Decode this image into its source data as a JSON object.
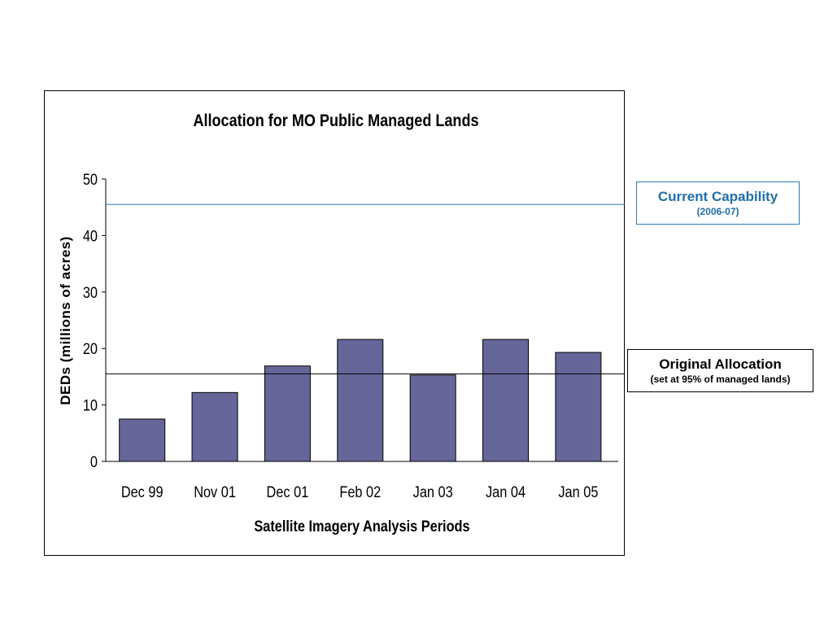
{
  "chart_data": {
    "type": "bar",
    "title": "Allocation for MO Public Managed Lands",
    "xlabel": "Satellite Imagery Analysis Periods",
    "ylabel": "DEDs (millions of acres)",
    "categories": [
      "Dec 99",
      "Nov 01",
      "Dec 01",
      "Feb 02",
      "Jan 03",
      "Jan 04",
      "Jan 05"
    ],
    "values": [
      7.5,
      12.2,
      16.9,
      21.6,
      15.3,
      21.6,
      19.3
    ],
    "ylim": [
      0,
      50
    ],
    "yticks": [
      "0",
      "10",
      "20",
      "30",
      "40",
      "50"
    ],
    "ytick_values": [
      0,
      10,
      20,
      30,
      40,
      50
    ],
    "grid": false,
    "legend": "none",
    "reference_lines": [
      {
        "id": "current",
        "value": 45.5,
        "color": "#2e7db5"
      },
      {
        "id": "original",
        "value": 15.5,
        "color": "#000000"
      }
    ],
    "bar_color": "#66669a",
    "bar_edge_color": "#000000"
  },
  "annotations": {
    "current_capability": {
      "label": "Current Capability",
      "sublabel": "(2006-07)",
      "color": "#1f6fa8"
    },
    "original_allocation": {
      "label": "Original Allocation",
      "sublabel": "(set at 95% of managed lands)",
      "color": "#000000"
    }
  }
}
